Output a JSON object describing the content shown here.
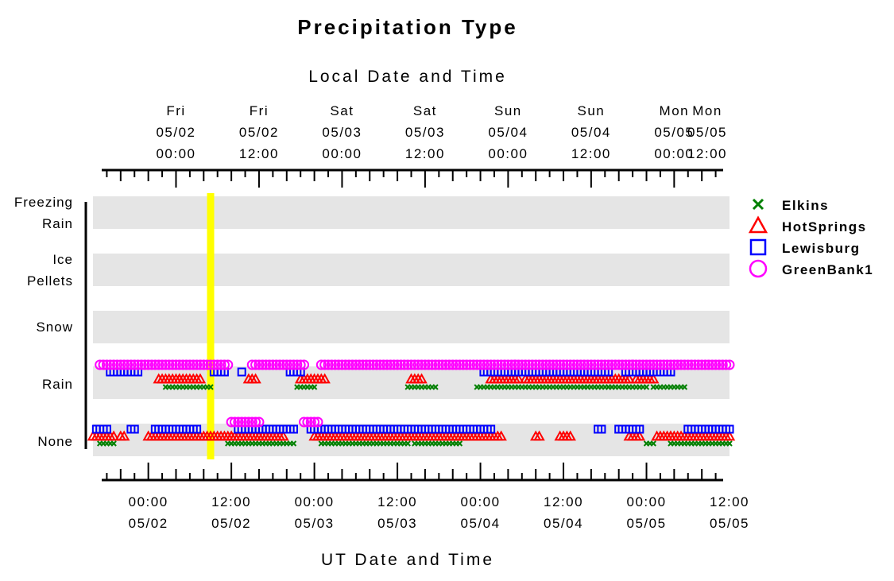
{
  "chart_data": {
    "type": "scatter",
    "title": "Precipitation Type",
    "top_axis_title": "Local Date and Time",
    "bottom_axis_title": "UT Date and Time",
    "categories": [
      "Freezing Rain",
      "Ice Pellets",
      "Snow",
      "Rain",
      "None"
    ],
    "category_labels": [
      [
        "Freezing",
        "Rain"
      ],
      [
        "Ice",
        "Pellets"
      ],
      [
        "Snow"
      ],
      [
        "Rain"
      ],
      [
        "None"
      ]
    ],
    "x_range_hours_ut": [
      -8,
      84
    ],
    "local_utc_offset_hours": -4,
    "top_ticks": [
      {
        "day": "Fri",
        "date": "05/02",
        "time": "00:00",
        "ut_hour": 4
      },
      {
        "day": "Fri",
        "date": "05/02",
        "time": "12:00",
        "ut_hour": 16
      },
      {
        "day": "Sat",
        "date": "05/03",
        "time": "00:00",
        "ut_hour": 28
      },
      {
        "day": "Sat",
        "date": "05/03",
        "time": "12:00",
        "ut_hour": 40
      },
      {
        "day": "Sun",
        "date": "05/04",
        "time": "00:00",
        "ut_hour": 52
      },
      {
        "day": "Sun",
        "date": "05/04",
        "time": "12:00",
        "ut_hour": 64
      },
      {
        "day": "Mon",
        "date": "05/05",
        "time": "00:00",
        "ut_hour": 76
      },
      {
        "day": "Mon",
        "date": "05/05",
        "time": "12:00",
        "ut_hour": 88
      }
    ],
    "bottom_ticks": [
      {
        "time": "00:00",
        "date": "05/02",
        "ut_hour": 0
      },
      {
        "time": "12:00",
        "date": "05/02",
        "ut_hour": 12
      },
      {
        "time": "00:00",
        "date": "05/03",
        "ut_hour": 24
      },
      {
        "time": "12:00",
        "date": "05/03",
        "ut_hour": 36
      },
      {
        "time": "00:00",
        "date": "05/04",
        "ut_hour": 48
      },
      {
        "time": "12:00",
        "date": "05/04",
        "ut_hour": 60
      },
      {
        "time": "00:00",
        "date": "05/05",
        "ut_hour": 72
      },
      {
        "time": "12:00",
        "date": "05/05",
        "ut_hour": 84
      }
    ],
    "current_time_marker_ut_hour": 9,
    "legend_position": "right",
    "series": [
      {
        "name": "Elkins",
        "marker": "x",
        "color": "#008000",
        "rain": [
          [
            2.5,
            9.0
          ],
          [
            21.5,
            24.0
          ],
          [
            37.5,
            41.5
          ],
          [
            47.5,
            63.0
          ],
          [
            63.0,
            67.0
          ],
          [
            66.5,
            72.0
          ],
          [
            73.0,
            77.5
          ]
        ],
        "none": [
          [
            -7.0,
            -5.0
          ],
          [
            11.5,
            21.0
          ],
          [
            25.0,
            37.5
          ],
          [
            38.5,
            45.0
          ],
          [
            72.0,
            73.0
          ],
          [
            75.5,
            84.0
          ]
        ]
      },
      {
        "name": "HotSprings",
        "marker": "triangle",
        "color": "#ff0000",
        "rain": [
          [
            1.5,
            4.5
          ],
          [
            4.5,
            7.5
          ],
          [
            14.5,
            15.5
          ],
          [
            22.0,
            25.5
          ],
          [
            38.0,
            39.5
          ],
          [
            49.5,
            53.5
          ],
          [
            54.5,
            58.5
          ],
          [
            59.0,
            64.5
          ],
          [
            64.5,
            69.5
          ],
          [
            70.5,
            73.0
          ]
        ],
        "none": [
          [
            -8.0,
            -5.0
          ],
          [
            -4.0,
            -3.5
          ],
          [
            0.0,
            2.0
          ],
          [
            2.0,
            12.5
          ],
          [
            12.0,
            16.0
          ],
          [
            16.0,
            19.5
          ],
          [
            24.0,
            38.5
          ],
          [
            38.5,
            45.5
          ],
          [
            45.5,
            51.0
          ],
          [
            56.0,
            56.5
          ],
          [
            59.5,
            61.0
          ],
          [
            69.5,
            71.0
          ],
          [
            73.5,
            75.5
          ],
          [
            75.5,
            84.0
          ]
        ]
      },
      {
        "name": "Lewisburg",
        "marker": "square",
        "color": "#0000ff",
        "rain": [
          [
            -5.5,
            -3.5
          ],
          [
            -3.0,
            -1.5
          ],
          [
            9.5,
            11.0
          ],
          [
            13.5,
            13.5
          ],
          [
            20.5,
            22.0
          ],
          [
            48.5,
            52.5
          ],
          [
            52.5,
            59.5
          ],
          [
            59.5,
            66.5
          ],
          [
            69.0,
            71.5
          ],
          [
            71.5,
            75.5
          ]
        ],
        "none": [
          [
            -7.5,
            -6.0
          ],
          [
            -2.5,
            -2.0
          ],
          [
            1.0,
            4.5
          ],
          [
            5.0,
            7.0
          ],
          [
            13.0,
            21.0
          ],
          [
            23.5,
            49.5
          ],
          [
            65.0,
            65.5
          ],
          [
            68.0,
            71.0
          ],
          [
            78.0,
            84.0
          ]
        ]
      },
      {
        "name": "GreenBank1",
        "marker": "circle",
        "color": "#ff00ff",
        "rain": [
          [
            -7.0,
            11.5
          ],
          [
            15.0,
            22.5
          ],
          [
            25.0,
            53.0
          ],
          [
            53.0,
            70.0
          ],
          [
            70.0,
            84.0
          ]
        ],
        "none": [
          [
            12.0,
            16.0
          ],
          [
            22.5,
            24.5
          ]
        ]
      }
    ]
  }
}
